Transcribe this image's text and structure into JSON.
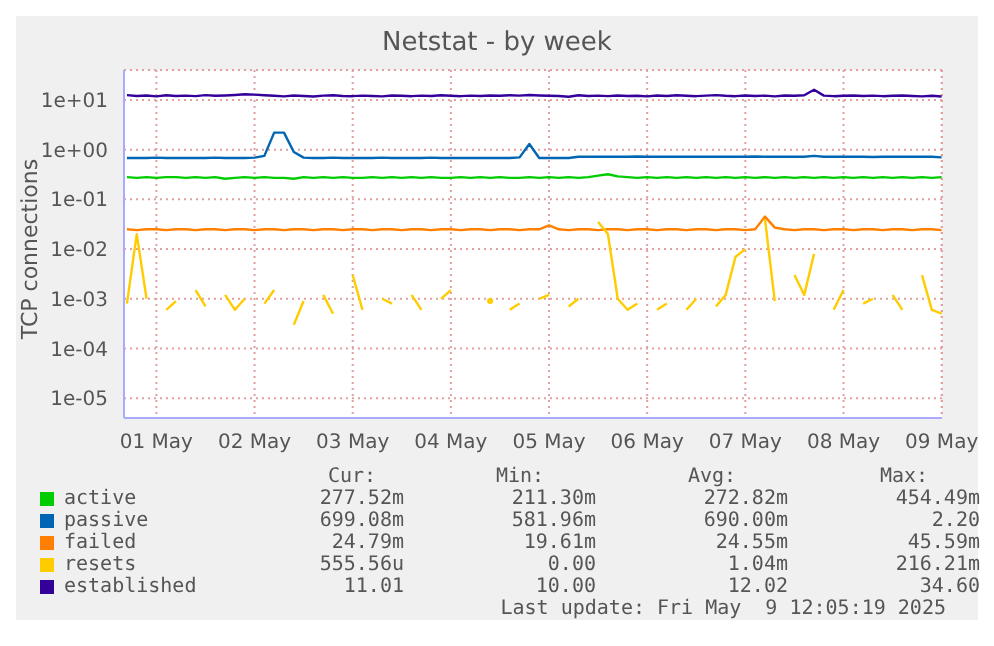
{
  "chart_data": {
    "type": "line",
    "title": "Netstat - by week",
    "ylabel": "TCP connections",
    "log": "y",
    "grid": true,
    "legend": "bottom",
    "marker": "none",
    "line_style": "solid",
    "xlim": [
      "2025-05-01T04:05",
      "2025-05-09T12:05"
    ],
    "xticks": [
      {
        "value": "2025-05-01T12:00",
        "label": "01 May"
      },
      {
        "value": "2025-05-02T12:00",
        "label": "02 May"
      },
      {
        "value": "2025-05-03T12:00",
        "label": "03 May"
      },
      {
        "value": "2025-05-04T12:00",
        "label": "04 May"
      },
      {
        "value": "2025-05-05T12:00",
        "label": "05 May"
      },
      {
        "value": "2025-05-06T12:00",
        "label": "06 May"
      },
      {
        "value": "2025-05-07T12:00",
        "label": "07 May"
      },
      {
        "value": "2025-05-08T12:00",
        "label": "08 May"
      },
      {
        "value": "2025-05-09T12:00",
        "label": "09 May"
      }
    ],
    "ylim": [
      4e-06,
      40
    ],
    "yticks": [
      {
        "value": 1e-05,
        "label": "1e-05"
      },
      {
        "value": 0.0001,
        "label": "1e-04"
      },
      {
        "value": 0.001,
        "label": "1e-03"
      },
      {
        "value": 0.01,
        "label": "1e-02"
      },
      {
        "value": 0.1,
        "label": "1e-01"
      },
      {
        "value": 1,
        "label": "1e+00"
      },
      {
        "value": 10,
        "label": "1e+01"
      }
    ],
    "x": [
      "2025-05-01T04:48",
      "2025-05-01T07:12",
      "2025-05-01T09:36",
      "2025-05-01T12:00",
      "2025-05-01T14:24",
      "2025-05-01T16:48",
      "2025-05-01T19:12",
      "2025-05-01T21:36",
      "2025-05-02T00:00",
      "2025-05-02T02:24",
      "2025-05-02T04:48",
      "2025-05-02T07:12",
      "2025-05-02T09:36",
      "2025-05-02T12:00",
      "2025-05-02T14:24",
      "2025-05-02T16:48",
      "2025-05-02T19:12",
      "2025-05-02T21:36",
      "2025-05-03T00:00",
      "2025-05-03T02:24",
      "2025-05-03T04:48",
      "2025-05-03T07:12",
      "2025-05-03T09:36",
      "2025-05-03T12:00",
      "2025-05-03T14:24",
      "2025-05-03T16:48",
      "2025-05-03T19:12",
      "2025-05-03T21:36",
      "2025-05-04T00:00",
      "2025-05-04T02:24",
      "2025-05-04T04:48",
      "2025-05-04T07:12",
      "2025-05-04T09:36",
      "2025-05-04T12:00",
      "2025-05-04T14:24",
      "2025-05-04T16:48",
      "2025-05-04T19:12",
      "2025-05-04T21:36",
      "2025-05-05T00:00",
      "2025-05-05T02:24",
      "2025-05-05T04:48",
      "2025-05-05T07:12",
      "2025-05-05T09:36",
      "2025-05-05T12:00",
      "2025-05-05T14:24",
      "2025-05-05T16:48",
      "2025-05-05T19:12",
      "2025-05-05T21:36",
      "2025-05-06T00:00",
      "2025-05-06T02:24",
      "2025-05-06T04:48",
      "2025-05-06T07:12",
      "2025-05-06T09:36",
      "2025-05-06T12:00",
      "2025-05-06T14:24",
      "2025-05-06T16:48",
      "2025-05-06T19:12",
      "2025-05-06T21:36",
      "2025-05-07T00:00",
      "2025-05-07T02:24",
      "2025-05-07T04:48",
      "2025-05-07T07:12",
      "2025-05-07T09:36",
      "2025-05-07T12:00",
      "2025-05-07T14:24",
      "2025-05-07T16:48",
      "2025-05-07T19:12",
      "2025-05-07T21:36",
      "2025-05-08T00:00",
      "2025-05-08T02:24",
      "2025-05-08T04:48",
      "2025-05-08T07:12",
      "2025-05-08T09:36",
      "2025-05-08T12:00",
      "2025-05-08T14:24",
      "2025-05-08T16:48",
      "2025-05-08T19:12",
      "2025-05-08T21:36",
      "2025-05-09T00:00",
      "2025-05-09T02:24",
      "2025-05-09T04:48",
      "2025-05-09T07:12",
      "2025-05-09T09:36",
      "2025-05-09T12:00"
    ],
    "series": [
      {
        "name": "active",
        "color": "#00cc00",
        "values": [
          0.28,
          0.27,
          0.28,
          0.27,
          0.28,
          0.28,
          0.27,
          0.28,
          0.27,
          0.28,
          0.26,
          0.27,
          0.28,
          0.27,
          0.28,
          0.27,
          0.27,
          0.26,
          0.28,
          0.27,
          0.28,
          0.27,
          0.28,
          0.27,
          0.27,
          0.28,
          0.27,
          0.28,
          0.27,
          0.28,
          0.27,
          0.28,
          0.27,
          0.27,
          0.28,
          0.27,
          0.28,
          0.27,
          0.28,
          0.27,
          0.27,
          0.28,
          0.27,
          0.28,
          0.27,
          0.28,
          0.27,
          0.28,
          0.3,
          0.32,
          0.29,
          0.28,
          0.27,
          0.28,
          0.27,
          0.28,
          0.27,
          0.28,
          0.27,
          0.28,
          0.27,
          0.28,
          0.27,
          0.28,
          0.27,
          0.28,
          0.27,
          0.28,
          0.27,
          0.28,
          0.27,
          0.28,
          0.27,
          0.28,
          0.27,
          0.28,
          0.27,
          0.28,
          0.27,
          0.28,
          0.27,
          0.28,
          0.27,
          0.28
        ]
      },
      {
        "name": "passive",
        "color": "#0066b3",
        "values": [
          0.68,
          0.68,
          0.68,
          0.69,
          0.68,
          0.68,
          0.68,
          0.68,
          0.68,
          0.69,
          0.68,
          0.68,
          0.68,
          0.69,
          0.75,
          2.2,
          2.2,
          0.9,
          0.69,
          0.68,
          0.68,
          0.69,
          0.68,
          0.68,
          0.68,
          0.68,
          0.69,
          0.68,
          0.68,
          0.68,
          0.68,
          0.69,
          0.68,
          0.68,
          0.68,
          0.68,
          0.68,
          0.68,
          0.68,
          0.68,
          0.7,
          1.3,
          0.68,
          0.68,
          0.68,
          0.68,
          0.72,
          0.72,
          0.72,
          0.72,
          0.72,
          0.72,
          0.73,
          0.72,
          0.72,
          0.72,
          0.72,
          0.72,
          0.72,
          0.72,
          0.72,
          0.72,
          0.72,
          0.72,
          0.73,
          0.72,
          0.72,
          0.72,
          0.72,
          0.72,
          0.75,
          0.72,
          0.72,
          0.72,
          0.72,
          0.72,
          0.71,
          0.72,
          0.72,
          0.72,
          0.72,
          0.72,
          0.72,
          0.7
        ]
      },
      {
        "name": "failed",
        "color": "#ff8000",
        "values": [
          0.025,
          0.024,
          0.025,
          0.025,
          0.024,
          0.025,
          0.025,
          0.024,
          0.025,
          0.025,
          0.024,
          0.025,
          0.025,
          0.024,
          0.025,
          0.025,
          0.024,
          0.025,
          0.025,
          0.024,
          0.025,
          0.025,
          0.024,
          0.025,
          0.025,
          0.024,
          0.025,
          0.025,
          0.024,
          0.025,
          0.025,
          0.024,
          0.025,
          0.025,
          0.024,
          0.025,
          0.025,
          0.024,
          0.025,
          0.025,
          0.024,
          0.025,
          0.025,
          0.03,
          0.025,
          0.024,
          0.025,
          0.025,
          0.024,
          0.025,
          0.025,
          0.024,
          0.025,
          0.025,
          0.024,
          0.025,
          0.025,
          0.024,
          0.025,
          0.025,
          0.024,
          0.025,
          0.025,
          0.024,
          0.025,
          0.045,
          0.027,
          0.025,
          0.024,
          0.025,
          0.025,
          0.024,
          0.025,
          0.025,
          0.024,
          0.025,
          0.025,
          0.024,
          0.025,
          0.025,
          0.024,
          0.025,
          0.025,
          0.024
        ]
      },
      {
        "name": "resets",
        "color": "#ffcc00",
        "values": [
          0.0008,
          0.02,
          0.001,
          null,
          0.0006,
          0.0009,
          null,
          0.0015,
          0.0007,
          null,
          0.0012,
          0.0006,
          0.001,
          null,
          0.0008,
          0.0015,
          null,
          0.0003,
          0.0009,
          null,
          0.0012,
          0.0005,
          null,
          0.003,
          0.0006,
          null,
          0.001,
          0.0008,
          null,
          0.0012,
          0.0006,
          null,
          0.001,
          0.0015,
          null,
          null,
          null,
          0.0009,
          null,
          0.0006,
          0.0008,
          null,
          0.001,
          0.0012,
          null,
          0.0007,
          0.001,
          null,
          0.035,
          0.02,
          0.001,
          0.0006,
          0.0008,
          null,
          0.0006,
          0.0008,
          null,
          0.0006,
          0.001,
          null,
          0.0007,
          0.0012,
          0.007,
          0.01,
          null,
          0.04,
          0.0009,
          null,
          0.003,
          0.0012,
          0.008,
          null,
          0.0006,
          0.0015,
          null,
          0.0008,
          0.001,
          null,
          0.0012,
          0.0006,
          null,
          0.003,
          0.0006,
          0.0005
        ]
      },
      {
        "name": "established",
        "color": "#330099",
        "values": [
          12.5,
          12,
          12.3,
          11.8,
          12.4,
          12,
          12.2,
          11.9,
          12.5,
          12.1,
          12.3,
          12.6,
          13,
          12.8,
          12.4,
          12.1,
          11.8,
          12.3,
          12,
          11.7,
          12.2,
          12.4,
          12,
          11.9,
          12.2,
          12,
          11.8,
          12.3,
          12.1,
          11.9,
          12.2,
          12,
          12.4,
          12.1,
          11.9,
          12.2,
          12,
          12.3,
          12.1,
          12.4,
          12.2,
          12.6,
          12.3,
          12.1,
          12,
          11.6,
          12.4,
          12,
          12.2,
          11.9,
          12.3,
          12,
          12.1,
          11.8,
          12.3,
          12,
          12.4,
          12.1,
          11.9,
          12.2,
          12.5,
          12.1,
          11.9,
          12.3,
          12,
          12.2,
          11.8,
          12.3,
          12.1,
          12.4,
          16,
          12.2,
          11.9,
          12.1,
          12.3,
          12,
          12.2,
          11.9,
          12.1,
          12.3,
          12,
          11.8,
          12.1,
          11.7
        ]
      }
    ],
    "annotations": [
      "Cur:",
      "Min:",
      "Avg:",
      "Max:",
      "277.52m",
      "211.30m",
      "272.82m",
      "454.49m",
      "699.08m",
      "581.96m",
      "690.00m",
      "2.20",
      "24.79m",
      "19.61m",
      "24.55m",
      "45.59m",
      "555.56u",
      "0.00",
      "1.04m",
      "216.21m",
      "11.01",
      "10.00",
      "12.02",
      "34.60",
      "Last update: Fri May  9 12:05:19 2025"
    ]
  }
}
